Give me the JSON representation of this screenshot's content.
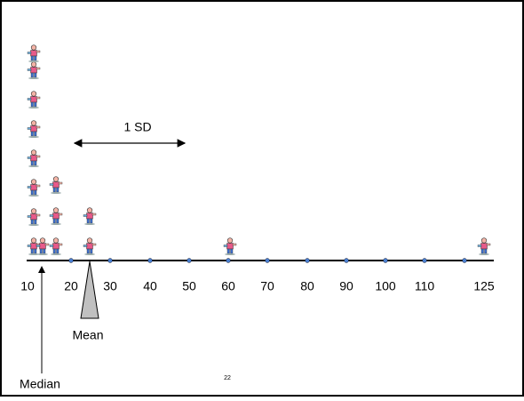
{
  "axis": {
    "labels": [
      "10",
      "20",
      "30",
      "40",
      "50",
      "60",
      "70",
      "80",
      "90",
      "100",
      "110",
      "125"
    ]
  },
  "annotations": {
    "sd": "1 SD",
    "mean": "Mean",
    "median": "Median"
  },
  "page_number": "22"
}
